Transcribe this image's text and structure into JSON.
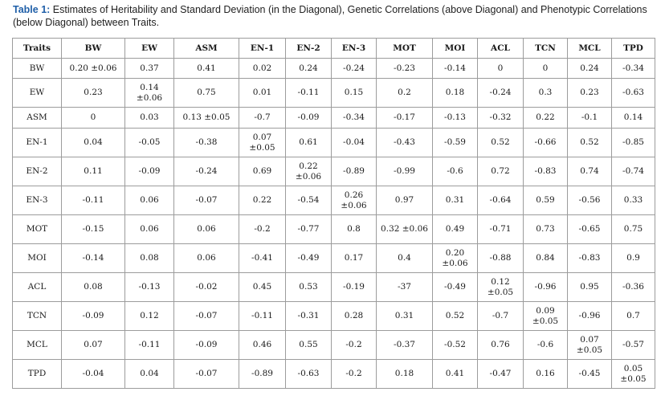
{
  "caption": {
    "lead": "Table 1:",
    "text": " Estimates of Heritability and Standard Deviation (in the Diagonal), Genetic Correlations (above Diagonal) and Phenotypic Correlations (below Diagonal) between Traits."
  },
  "table": {
    "headers": [
      "Traits",
      "BW",
      "EW",
      "ASM",
      "EN-1",
      "EN-2",
      "EN-3",
      "MOT",
      "MOI",
      "ACL",
      "TCN",
      "MCL",
      "TPD"
    ],
    "rows": [
      {
        "label": "BW",
        "cells": [
          "0.20 ±0.06",
          "0.37",
          "0.41",
          "0.02",
          "0.24",
          "-0.24",
          "-0.23",
          "-0.14",
          "0",
          "0",
          "0.24",
          "-0.34"
        ]
      },
      {
        "label": "EW",
        "cells": [
          "0.23",
          "0.14 ±0.06",
          "0.75",
          "0.01",
          "-0.11",
          "0.15",
          "0.2",
          "0.18",
          "-0.24",
          "0.3",
          "0.23",
          "-0.63"
        ]
      },
      {
        "label": "ASM",
        "cells": [
          "0",
          "0.03",
          "0.13 ±0.05",
          "-0.7",
          "-0.09",
          "-0.34",
          "-0.17",
          "-0.13",
          "-0.32",
          "0.22",
          "-0.1",
          "0.14"
        ]
      },
      {
        "label": "EN-1",
        "cells": [
          "0.04",
          "-0.05",
          "-0.38",
          "0.07 ±0.05",
          "0.61",
          "-0.04",
          "-0.43",
          "-0.59",
          "0.52",
          "-0.66",
          "0.52",
          "-0.85"
        ]
      },
      {
        "label": "EN-2",
        "cells": [
          "0.11",
          "-0.09",
          "-0.24",
          "0.69",
          "0.22 ±0.06",
          "-0.89",
          "-0.99",
          "-0.6",
          "0.72",
          "-0.83",
          "0.74",
          "-0.74"
        ]
      },
      {
        "label": "EN-3",
        "cells": [
          "-0.11",
          "0.06",
          "-0.07",
          "0.22",
          "-0.54",
          "0.26 ±0.06",
          "0.97",
          "0.31",
          "-0.64",
          "0.59",
          "-0.56",
          "0.33"
        ]
      },
      {
        "label": "MOT",
        "cells": [
          "-0.15",
          "0.06",
          "0.06",
          "-0.2",
          "-0.77",
          "0.8",
          "0.32 ±0.06",
          "0.49",
          "-0.71",
          "0.73",
          "-0.65",
          "0.75"
        ]
      },
      {
        "label": "MOI",
        "cells": [
          "-0.14",
          "0.08",
          "0.06",
          "-0.41",
          "-0.49",
          "0.17",
          "0.4",
          "0.20 ±0.06",
          "-0.88",
          "0.84",
          "-0.83",
          "0.9"
        ]
      },
      {
        "label": "ACL",
        "cells": [
          "0.08",
          "-0.13",
          "-0.02",
          "0.45",
          "0.53",
          "-0.19",
          "-37",
          "-0.49",
          "0.12 ±0.05",
          "-0.96",
          "0.95",
          "-0.36"
        ]
      },
      {
        "label": "TCN",
        "cells": [
          "-0.09",
          "0.12",
          "-0.07",
          "-0.11",
          "-0.31",
          "0.28",
          "0.31",
          "0.52",
          "-0.7",
          "0.09 ±0.05",
          "-0.96",
          "0.7"
        ]
      },
      {
        "label": "MCL",
        "cells": [
          "0.07",
          "-0.11",
          "-0.09",
          "0.46",
          "0.55",
          "-0.2",
          "-0.37",
          "-0.52",
          "0.76",
          "-0.6",
          "0.07 ±0.05",
          "-0.57"
        ]
      },
      {
        "label": "TPD",
        "cells": [
          "-0.04",
          "0.04",
          "-0.07",
          "-0.89",
          "-0.63",
          "-0.2",
          "0.18",
          "0.41",
          "-0.47",
          "0.16",
          "-0.45",
          "0.05 ±0.05"
        ]
      }
    ]
  }
}
